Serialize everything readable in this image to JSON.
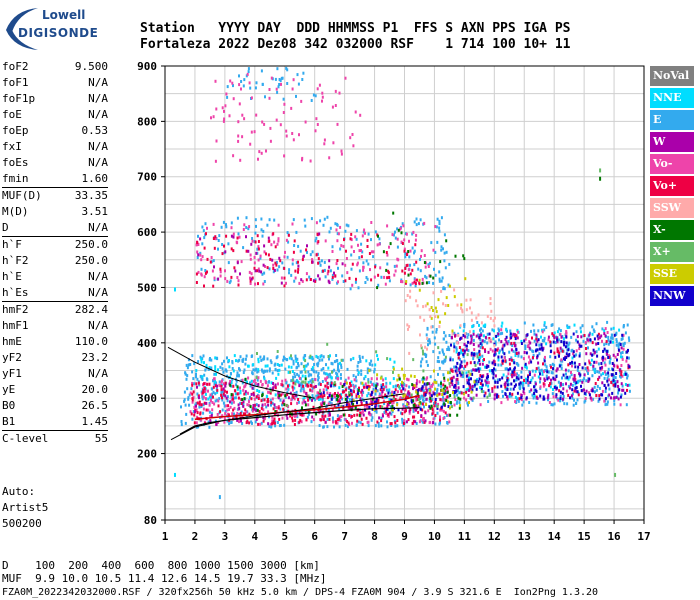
{
  "logo": {
    "lowell": "Lowell",
    "digisonde": "DIGISONDE"
  },
  "header": {
    "row1": "Station   YYYY DAY  DDD HHMMSS P1  FFS S AXN PPS IGA PS",
    "row2": "Fortaleza 2022 Dez08 342 032000 RSF    1 714 100 10+ 11"
  },
  "params": [
    {
      "name": "foF2",
      "value": "9.500",
      "sep": false
    },
    {
      "name": "foF1",
      "value": "N/A",
      "sep": false
    },
    {
      "name": "foF1p",
      "value": "N/A",
      "sep": false
    },
    {
      "name": "foE",
      "value": "N/A",
      "sep": false
    },
    {
      "name": "foEp",
      "value": "0.53",
      "sep": false
    },
    {
      "name": "fxI",
      "value": "N/A",
      "sep": false
    },
    {
      "name": "foEs",
      "value": "N/A",
      "sep": false
    },
    {
      "name": "fmin",
      "value": "1.60",
      "sep": false
    },
    {
      "name": "MUF(D)",
      "value": "33.35",
      "sep": true
    },
    {
      "name": "M(D)",
      "value": "3.51",
      "sep": false
    },
    {
      "name": "D",
      "value": "N/A",
      "sep": false
    },
    {
      "name": "h`F",
      "value": "250.0",
      "sep": true
    },
    {
      "name": "h`F2",
      "value": "250.0",
      "sep": false
    },
    {
      "name": "h`E",
      "value": "N/A",
      "sep": false
    },
    {
      "name": "h`Es",
      "value": "N/A",
      "sep": false
    },
    {
      "name": "hmF2",
      "value": "282.4",
      "sep": true
    },
    {
      "name": "hmF1",
      "value": "N/A",
      "sep": false
    },
    {
      "name": "hmE",
      "value": "110.0",
      "sep": false
    },
    {
      "name": "yF2",
      "value": "23.2",
      "sep": false
    },
    {
      "name": "yF1",
      "value": "N/A",
      "sep": false
    },
    {
      "name": "yE",
      "value": "20.0",
      "sep": false
    },
    {
      "name": "B0",
      "value": "26.5",
      "sep": false
    },
    {
      "name": "B1",
      "value": "1.45",
      "sep": false
    },
    {
      "name": "C-level",
      "value": "55",
      "sep": true
    }
  ],
  "auto": [
    "Auto:",
    "Artist5",
    "500200"
  ],
  "footer": {
    "row_d": "D    100  200  400  600  800 1000 1500 3000 [km]",
    "row_muf": "MUF  9.9 10.0 10.5 11.4 12.6 14.5 19.7 33.3 [MHz]",
    "row_info": "FZA0M_2022342032000.RSF / 320fx256h 50 kHz 5.0 km / DPS-4 FZA0M 904 / 3.9 S 321.6 E  Ion2Png 1.3.20"
  },
  "legend": [
    {
      "label": "NoVal",
      "color": "#808080"
    },
    {
      "label": "NNE",
      "color": "#00ddff"
    },
    {
      "label": "E",
      "color": "#33aaee"
    },
    {
      "label": "W",
      "color": "#aa00aa"
    },
    {
      "label": "Vo-",
      "color": "#ee44aa"
    },
    {
      "label": "Vo+",
      "color": "#ee0044"
    },
    {
      "label": "SSW",
      "color": "#ffaaaa"
    },
    {
      "label": "X-",
      "color": "#007700"
    },
    {
      "label": "X+",
      "color": "#66bb66"
    },
    {
      "label": "SSE",
      "color": "#cccc00"
    },
    {
      "label": "NNW",
      "color": "#1100cc"
    }
  ],
  "chart_data": {
    "type": "scatter",
    "xlim": [
      1,
      17
    ],
    "ylim": [
      80,
      900
    ],
    "x_ticks": [
      1,
      2,
      3,
      4,
      5,
      6,
      7,
      8,
      9,
      10,
      11,
      12,
      13,
      14,
      15,
      16,
      17
    ],
    "y_ticks": [
      80,
      200,
      300,
      400,
      500,
      600,
      700,
      800,
      900
    ],
    "grid": true,
    "series": [
      {
        "name": "E",
        "color": "#33aaee",
        "clusters": [
          {
            "x": [
              1.6,
              8.0
            ],
            "y": [
              330,
              380
            ],
            "n": 260
          },
          {
            "x": [
              9.5,
              16.5
            ],
            "y": [
              290,
              440
            ],
            "n": 520
          },
          {
            "x": [
              1.5,
              10.5
            ],
            "y": [
              250,
              330
            ],
            "n": 380
          },
          {
            "x": [
              2.0,
              10.5
            ],
            "y": [
              500,
              630
            ],
            "n": 220
          },
          {
            "x": [
              3.0,
              6.0
            ],
            "y": [
              840,
              900
            ],
            "n": 40
          }
        ]
      },
      {
        "name": "NNE",
        "color": "#00ddff",
        "clusters": [
          {
            "x": [
              2.0,
              9.0
            ],
            "y": [
              300,
              380
            ],
            "n": 120
          },
          {
            "x": [
              10.5,
              16.5
            ],
            "y": [
              300,
              440
            ],
            "n": 110
          }
        ]
      },
      {
        "name": "Vo-",
        "color": "#ee44aa",
        "clusters": [
          {
            "x": [
              1.8,
              10.5
            ],
            "y": [
              255,
              340
            ],
            "n": 320
          },
          {
            "x": [
              2.0,
              10.0
            ],
            "y": [
              505,
              620
            ],
            "n": 160
          },
          {
            "x": [
              2.5,
              7.5
            ],
            "y": [
              730,
              890
            ],
            "n": 90
          },
          {
            "x": [
              10.5,
              16.5
            ],
            "y": [
              290,
              430
            ],
            "n": 120
          }
        ]
      },
      {
        "name": "Vo+",
        "color": "#ee0044",
        "clusters": [
          {
            "x": [
              1.8,
              10.5
            ],
            "y": [
              255,
              330
            ],
            "n": 300
          },
          {
            "x": [
              2.0,
              9.5
            ],
            "y": [
              505,
              600
            ],
            "n": 110
          },
          {
            "x": [
              10.5,
              16.5
            ],
            "y": [
              300,
              420
            ],
            "n": 100
          }
        ]
      },
      {
        "name": "W",
        "color": "#aa00aa",
        "clusters": [
          {
            "x": [
              1.8,
              10.0
            ],
            "y": [
              255,
              330
            ],
            "n": 110
          },
          {
            "x": [
              10.5,
              16.5
            ],
            "y": [
              300,
              420
            ],
            "n": 180
          },
          {
            "x": [
              2.0,
              7.0
            ],
            "y": [
              510,
              600
            ],
            "n": 40
          }
        ]
      },
      {
        "name": "NNW",
        "color": "#1100cc",
        "clusters": [
          {
            "x": [
              10.5,
              16.5
            ],
            "y": [
              300,
              420
            ],
            "n": 260
          },
          {
            "x": [
              6.0,
              10.5
            ],
            "y": [
              280,
              330
            ],
            "n": 60
          }
        ]
      },
      {
        "name": "X-",
        "color": "#007700",
        "clusters": [
          {
            "x": [
              3.0,
              11.0
            ],
            "y": [
              270,
              340
            ],
            "n": 70
          },
          {
            "x": [
              8.0,
              11.0
            ],
            "y": [
              500,
              640
            ],
            "n": 20
          }
        ]
      },
      {
        "name": "X+",
        "color": "#66bb66",
        "clusters": [
          {
            "x": [
              4.0,
              12.0
            ],
            "y": [
              280,
              400
            ],
            "n": 60
          }
        ]
      },
      {
        "name": "SSE",
        "color": "#cccc00",
        "clusters": [
          {
            "x": [
              7.0,
              11.5
            ],
            "y": [
              280,
              360
            ],
            "n": 50
          },
          {
            "x": [
              9.0,
              11.0
            ],
            "y": [
              420,
              520
            ],
            "n": 20
          }
        ]
      },
      {
        "name": "SSW",
        "color": "#ffaaaa",
        "clusters": [
          {
            "x": [
              9.0,
              12.0
            ],
            "y": [
              380,
              500
            ],
            "n": 60
          }
        ]
      }
    ],
    "trace_points": [
      {
        "color": "#00ddff",
        "x": 1.3,
        "y": 165
      },
      {
        "color": "#00ddff",
        "x": 1.3,
        "y": 500
      },
      {
        "color": "#33aaee",
        "x": 2.8,
        "y": 125
      },
      {
        "color": "#007700",
        "x": 15.5,
        "y": 700
      },
      {
        "color": "#66bb66",
        "x": 15.5,
        "y": 715
      },
      {
        "color": "#66bb66",
        "x": 16.0,
        "y": 165
      }
    ],
    "profile_curve": {
      "color": "#000000",
      "x": [
        1.5,
        2.0,
        2.5,
        3.0,
        4.0,
        5.0,
        6.0,
        7.0,
        8.0,
        9.0,
        9.5
      ],
      "y": [
        235,
        250,
        256,
        260,
        265,
        270,
        274,
        278,
        281,
        282,
        283
      ]
    },
    "guide_curve_lower": {
      "color": "#000000",
      "x": [
        1.2,
        2.0,
        3.0,
        4.0,
        5.0,
        6.0,
        7.0,
        8.0,
        9.0
      ],
      "y": [
        225,
        248,
        260,
        268,
        275,
        282,
        292,
        300,
        308
      ]
    },
    "guide_curve_upper": {
      "color": "#000000",
      "x": [
        1.1,
        1.5,
        2.0,
        3.0,
        4.0,
        5.0,
        6.0
      ],
      "y": [
        392,
        380,
        365,
        340,
        322,
        310,
        300
      ]
    },
    "red_curve": {
      "color": "#cc0000",
      "x": [
        2.0,
        3.0,
        4.0,
        5.0,
        6.0,
        7.0,
        8.0,
        9.0,
        9.5
      ],
      "y": [
        262,
        267,
        270,
        275,
        279,
        284,
        290,
        298,
        305
      ]
    }
  }
}
